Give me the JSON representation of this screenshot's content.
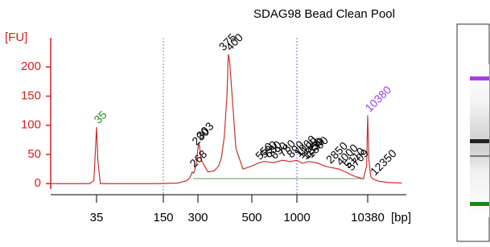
{
  "chart_data": {
    "type": "line",
    "title": "SDAG98 Bead Clean Pool",
    "y_label": "[FU]",
    "x_label": "[bp]",
    "log_scale_x": true,
    "xlim": [
      13,
      32000
    ],
    "xticks": [
      35,
      150,
      300,
      500,
      1000,
      10380
    ],
    "ylim": [
      -19,
      250
    ],
    "yticks": [
      0,
      50,
      100,
      150,
      200
    ],
    "color": "#c83232",
    "axis_color": "#d42020",
    "x": [
      13,
      30,
      33,
      34,
      35,
      36,
      38,
      60,
      100,
      130,
      200,
      220,
      240,
      255,
      268,
      275,
      280,
      290,
      300,
      303,
      310,
      330,
      350,
      365,
      375,
      385,
      395,
      400,
      405,
      415,
      430,
      460,
      500,
      550,
      600,
      700,
      800,
      900,
      1000,
      1200,
      1500,
      2000,
      2500,
      3000,
      4000,
      5000,
      6000,
      7000,
      8000,
      9000,
      10000,
      10380,
      10800,
      11500,
      12350,
      15000,
      20000,
      32000
    ],
    "values": [
      0,
      0,
      5,
      50,
      97,
      40,
      0,
      0,
      0,
      0,
      1,
      3,
      5,
      10,
      20,
      18,
      22,
      35,
      60,
      70,
      40,
      20,
      22,
      30,
      45,
      80,
      150,
      222,
      210,
      150,
      60,
      25,
      30,
      35,
      38,
      36,
      40,
      38,
      40,
      35,
      38,
      35,
      30,
      28,
      25,
      20,
      15,
      12,
      10,
      8,
      30,
      117,
      40,
      12,
      8,
      4,
      2,
      1
    ],
    "peak_labels": {
      "values": [
        35,
        268,
        280,
        303,
        375,
        400,
        550,
        590,
        630,
        690,
        780,
        890,
        1000,
        1100,
        1250,
        1330,
        1500,
        2850,
        4000,
        5110,
        5709,
        10380,
        12350
      ],
      "colors": [
        "#1a8a1a",
        "#000000",
        "#000000",
        "#000000",
        "#000000",
        "#000000",
        "#000000",
        "#000000",
        "#000000",
        "#000000",
        "#000000",
        "#000000",
        "#000000",
        "#000000",
        "#000000",
        "#000000",
        "#000000",
        "#000000",
        "#000000",
        "#000000",
        "#000000",
        "#9b40e0",
        "#000000"
      ]
    }
  }
}
